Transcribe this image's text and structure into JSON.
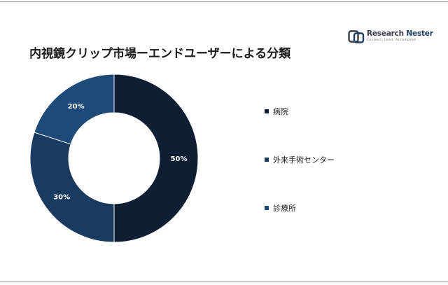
{
  "title": "内視鏡クリップ市場ーエンドユーザーによる分類",
  "logo": {
    "name_part1": "Research",
    "name_part2": "Nester",
    "tagline": "Connect. Lead. Accomplish",
    "icon": "research-nester-logo-icon"
  },
  "colors": {
    "hospital": "#0e1e33",
    "ambulatory": "#1a3a5f",
    "clinic": "#1d4a78",
    "logo": "#3a3f46"
  },
  "chart_data": {
    "type": "pie",
    "style": "donut",
    "title": "内視鏡クリップ市場ーエンドユーザーによる分類",
    "categories": [
      "病院",
      "外来手術センター",
      "診療所"
    ],
    "values": [
      50,
      30,
      20
    ],
    "labels": [
      "50%",
      "30%",
      "20%"
    ],
    "unit": "%",
    "legend_position": "right"
  }
}
